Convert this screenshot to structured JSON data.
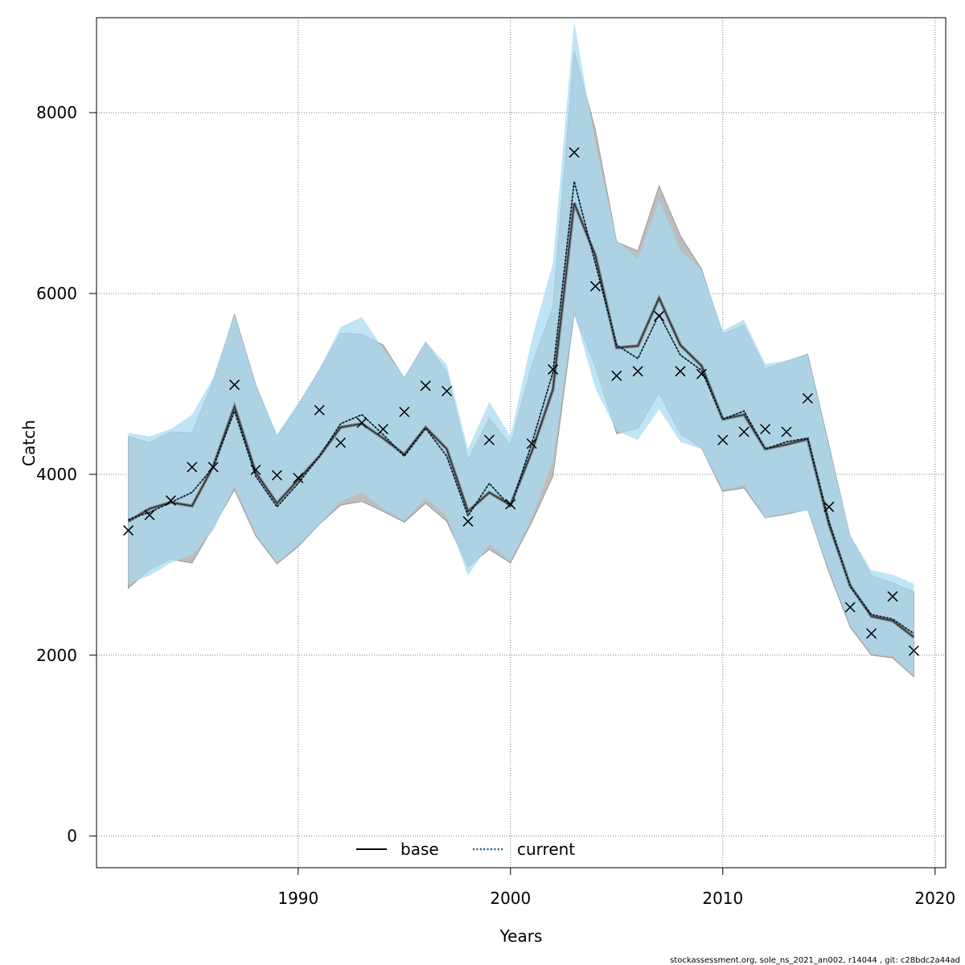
{
  "chart_data": {
    "type": "line",
    "xlabel": "Years",
    "ylabel": "Catch",
    "xlim": [
      1980.5,
      2020.5
    ],
    "ylim": [
      -350,
      9050
    ],
    "x_ticks": [
      1990,
      2000,
      2010,
      2020
    ],
    "y_ticks": [
      0,
      2000,
      4000,
      6000,
      8000
    ],
    "x_tick_labels": [
      "1990",
      "2000",
      "2010",
      "2020"
    ],
    "y_tick_labels": [
      "0",
      "2000",
      "4000",
      "6000",
      "8000"
    ],
    "grid": true,
    "legend_position": "bottom-center",
    "x": [
      1982,
      1983,
      1984,
      1985,
      1986,
      1987,
      1988,
      1989,
      1990,
      1991,
      1992,
      1993,
      1994,
      1995,
      1996,
      1997,
      1998,
      1999,
      2000,
      2001,
      2002,
      2003,
      2004,
      2005,
      2006,
      2007,
      2008,
      2009,
      2010,
      2011,
      2012,
      2013,
      2014,
      2015,
      2016,
      2017,
      2018,
      2019
    ],
    "series": [
      {
        "name": "base",
        "line_style": "solid",
        "color": "#000000",
        "band_color": "#bdbdbd",
        "values": [
          3480,
          3620,
          3690,
          3650,
          4090,
          4750,
          4020,
          3680,
          3940,
          4200,
          4520,
          4560,
          4400,
          4220,
          4520,
          4280,
          3590,
          3800,
          3660,
          4250,
          4940,
          7000,
          6420,
          5400,
          5420,
          5950,
          5430,
          5200,
          4610,
          4660,
          4280,
          4330,
          4390,
          3450,
          2770,
          2430,
          2380,
          2200
        ],
        "lower": [
          2740,
          2950,
          3060,
          3020,
          3420,
          3830,
          3320,
          3010,
          3200,
          3450,
          3660,
          3700,
          3590,
          3470,
          3680,
          3480,
          2980,
          3170,
          3020,
          3470,
          3980,
          5780,
          5190,
          4450,
          4510,
          4900,
          4450,
          4290,
          3810,
          3850,
          3520,
          3560,
          3610,
          2920,
          2310,
          2000,
          1970,
          1760
        ],
        "upper": [
          4420,
          4350,
          4470,
          4460,
          5030,
          5770,
          4990,
          4420,
          4760,
          5150,
          5560,
          5550,
          5430,
          5060,
          5460,
          5130,
          4160,
          4620,
          4320,
          5200,
          5850,
          8680,
          7810,
          6570,
          6470,
          7190,
          6640,
          6270,
          5550,
          5650,
          5170,
          5250,
          5330,
          4320,
          3310,
          2880,
          2800,
          2700
        ]
      },
      {
        "name": "current",
        "line_style": "dotted",
        "color": "#1f5f8b",
        "band_color": "#a6d9f2",
        "values": [
          3500,
          3580,
          3690,
          3800,
          4080,
          4700,
          3980,
          3640,
          3900,
          4200,
          4560,
          4660,
          4440,
          4200,
          4510,
          4200,
          3540,
          3900,
          3640,
          4340,
          5130,
          7240,
          6330,
          5430,
          5280,
          5770,
          5320,
          5150,
          4610,
          4700,
          4280,
          4360,
          4400,
          3480,
          2760,
          2450,
          2400,
          2240
        ],
        "lower": [
          2790,
          2880,
          3020,
          3110,
          3380,
          3870,
          3340,
          3020,
          3220,
          3450,
          3700,
          3800,
          3620,
          3490,
          3740,
          3540,
          2880,
          3230,
          3040,
          3510,
          4160,
          5780,
          4950,
          4480,
          4380,
          4720,
          4360,
          4280,
          3830,
          3880,
          3520,
          3570,
          3600,
          2940,
          2330,
          2020,
          1990,
          1770
        ],
        "upper": [
          4460,
          4420,
          4500,
          4660,
          5070,
          5770,
          4990,
          4440,
          4790,
          5170,
          5630,
          5740,
          5390,
          5080,
          5470,
          5210,
          4280,
          4800,
          4420,
          5490,
          6340,
          9010,
          7650,
          6590,
          6380,
          7030,
          6480,
          6260,
          5590,
          5710,
          5220,
          5260,
          5330,
          4310,
          3330,
          2940,
          2890,
          2790
        ]
      }
    ],
    "observations": {
      "marker": "x",
      "values": [
        3380,
        3550,
        3710,
        4080,
        4080,
        4990,
        4050,
        3990,
        3960,
        4710,
        4350,
        4570,
        4500,
        4690,
        4980,
        4920,
        3480,
        4380,
        3670,
        4340,
        5160,
        7560,
        6080,
        5090,
        5140,
        5750,
        5140,
        5110,
        4380,
        4470,
        4500,
        4470,
        4840,
        3640,
        2530,
        2240,
        2650,
        2050
      ]
    }
  },
  "footer": {
    "text": "stockassessment.org, sole_ns_2021_an002, r14044 , git: c28bdc2a44ad"
  }
}
